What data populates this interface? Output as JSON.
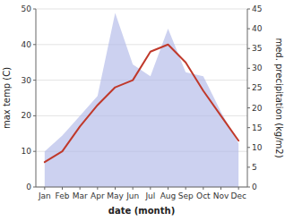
{
  "chart_data": {
    "type": "line",
    "categories": [
      "Jan",
      "Feb",
      "Mar",
      "Apr",
      "May",
      "Jun",
      "Jul",
      "Aug",
      "Sep",
      "Oct",
      "Nov",
      "Dec"
    ],
    "xlabel": "date (month)",
    "ylabel": "max temp (C)",
    "y2label": "med. precipitation (kg/m2)",
    "ylim": [
      0,
      50
    ],
    "yticks": [
      0,
      10,
      20,
      30,
      40,
      50
    ],
    "y2lim": [
      0,
      45
    ],
    "y2ticks": [
      0,
      5,
      10,
      15,
      20,
      25,
      30,
      35,
      40,
      45
    ],
    "grid": true,
    "series": [
      {
        "type": "area",
        "axis": "y2",
        "color": "#b0b8e8",
        "values": [
          9,
          13,
          18,
          23,
          44,
          31,
          28,
          40,
          29,
          28,
          19,
          11
        ]
      },
      {
        "type": "line",
        "color": "#c0392b",
        "values": [
          7,
          10,
          17,
          23,
          28,
          30,
          38,
          40,
          35,
          27,
          20,
          13
        ]
      }
    ]
  }
}
